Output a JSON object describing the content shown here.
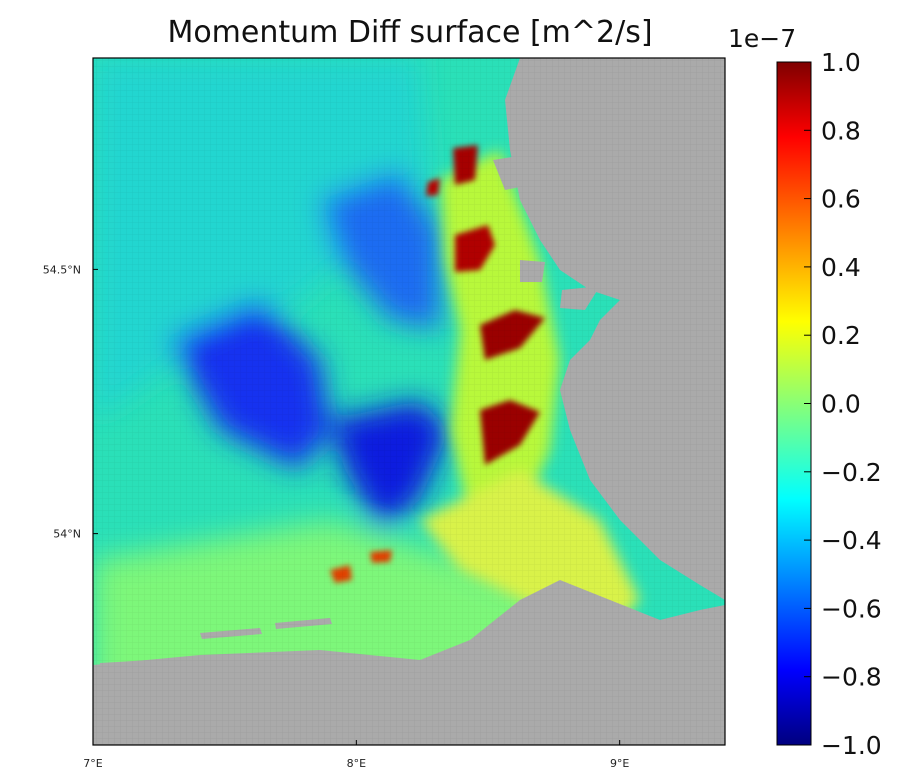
{
  "chart_data": {
    "type": "heatmap",
    "title": "Momentum Diff surface [m^2/s]",
    "x_ticks": [
      {
        "value": 7,
        "label": "7°E"
      },
      {
        "value": 8,
        "label": "8°E"
      },
      {
        "value": 9,
        "label": "9°E"
      }
    ],
    "y_ticks": [
      {
        "value": 54.5,
        "label": "54.5°N"
      },
      {
        "value": 54.0,
        "label": "54°N"
      }
    ],
    "xlim": [
      7.0,
      9.4
    ],
    "ylim": [
      53.6,
      54.9
    ],
    "colorbar": {
      "colormap": "jet",
      "range": [
        -1.0,
        1.0
      ],
      "exponent_label": "1e−7",
      "ticks": [
        {
          "value": 1.0,
          "label": "1.0"
        },
        {
          "value": 0.8,
          "label": "0.8"
        },
        {
          "value": 0.6,
          "label": "0.6"
        },
        {
          "value": 0.4,
          "label": "0.4"
        },
        {
          "value": 0.2,
          "label": "0.2"
        },
        {
          "value": 0.0,
          "label": "0.0"
        },
        {
          "value": -0.2,
          "label": "−0.2"
        },
        {
          "value": -0.4,
          "label": "−0.4"
        },
        {
          "value": -0.6,
          "label": "−0.6"
        },
        {
          "value": -0.8,
          "label": "−0.8"
        },
        {
          "value": -1.0,
          "label": "−1.0"
        }
      ]
    },
    "land_color": "#aaaaaa",
    "features": [
      {
        "name": "open-sea",
        "value": -0.05
      },
      {
        "name": "western-negative-basin",
        "value": -0.75
      },
      {
        "name": "central-negative-basin",
        "value": -0.8
      },
      {
        "name": "sylt-positive-patch",
        "value": 0.95
      },
      {
        "name": "amrum-positive-patch",
        "value": 0.9
      },
      {
        "name": "eiderstedt-positive-patch",
        "value": 0.95
      },
      {
        "name": "dithmarschen-positive-patch",
        "value": 0.95
      },
      {
        "name": "elbe-mouth-positive-patch",
        "value": 0.75
      }
    ]
  }
}
